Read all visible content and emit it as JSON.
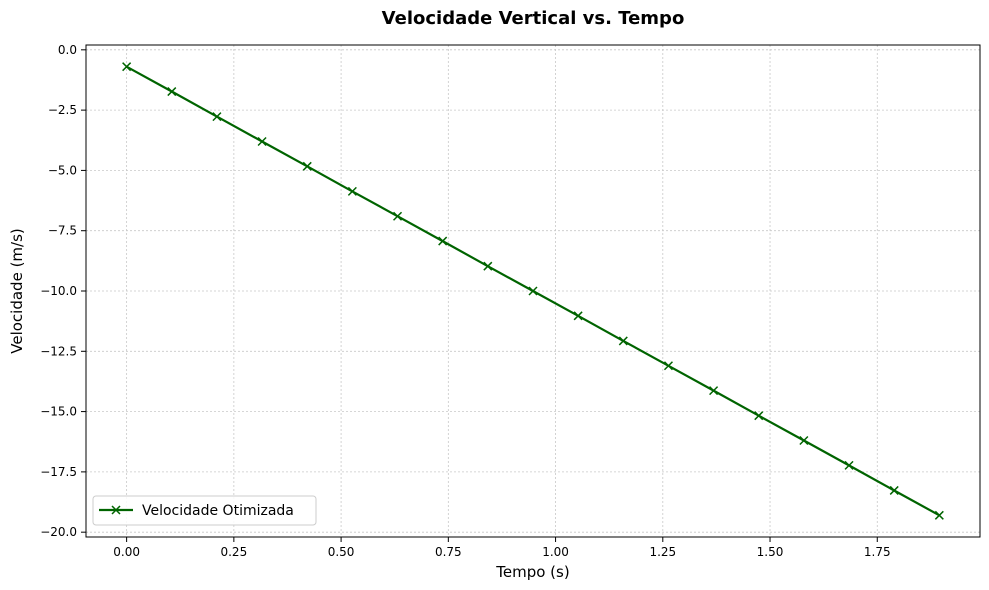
{
  "chart_data": {
    "type": "line",
    "title": "Velocidade Vertical vs. Tempo",
    "xlabel": "Tempo (s)",
    "ylabel": "Velocidade (m/s)",
    "xlim": [
      -0.0947,
      1.9895
    ],
    "ylim": [
      -20.2,
      0.2
    ],
    "xticks": [
      0.0,
      0.25,
      0.5,
      0.75,
      1.0,
      1.25,
      1.5,
      1.75
    ],
    "xtick_labels": [
      "0.00",
      "0.25",
      "0.50",
      "0.75",
      "1.00",
      "1.25",
      "1.50",
      "1.75"
    ],
    "yticks": [
      0.0,
      -2.5,
      -5.0,
      -7.5,
      -10.0,
      -12.5,
      -15.0,
      -17.5,
      -20.0
    ],
    "ytick_labels": [
      "0.0",
      "−2.5",
      "−5.0",
      "−7.5",
      "−10.0",
      "−12.5",
      "−15.0",
      "−17.5",
      "−20.0"
    ],
    "grid": true,
    "legend_position": "lower-left",
    "series": [
      {
        "name": "Velocidade Otimizada",
        "color": "#006400",
        "marker": "x",
        "x": [
          0.0,
          0.1053,
          0.2105,
          0.3158,
          0.4211,
          0.5263,
          0.6316,
          0.7368,
          0.8421,
          0.9474,
          1.0526,
          1.1579,
          1.2632,
          1.3684,
          1.4737,
          1.5789,
          1.6842,
          1.7895,
          1.8947
        ],
        "y": [
          -0.7,
          -1.73,
          -2.77,
          -3.8,
          -4.83,
          -5.87,
          -6.9,
          -7.93,
          -8.97,
          -10.0,
          -11.03,
          -12.07,
          -13.1,
          -14.13,
          -15.17,
          -16.2,
          -17.23,
          -18.27,
          -19.3
        ]
      }
    ]
  }
}
